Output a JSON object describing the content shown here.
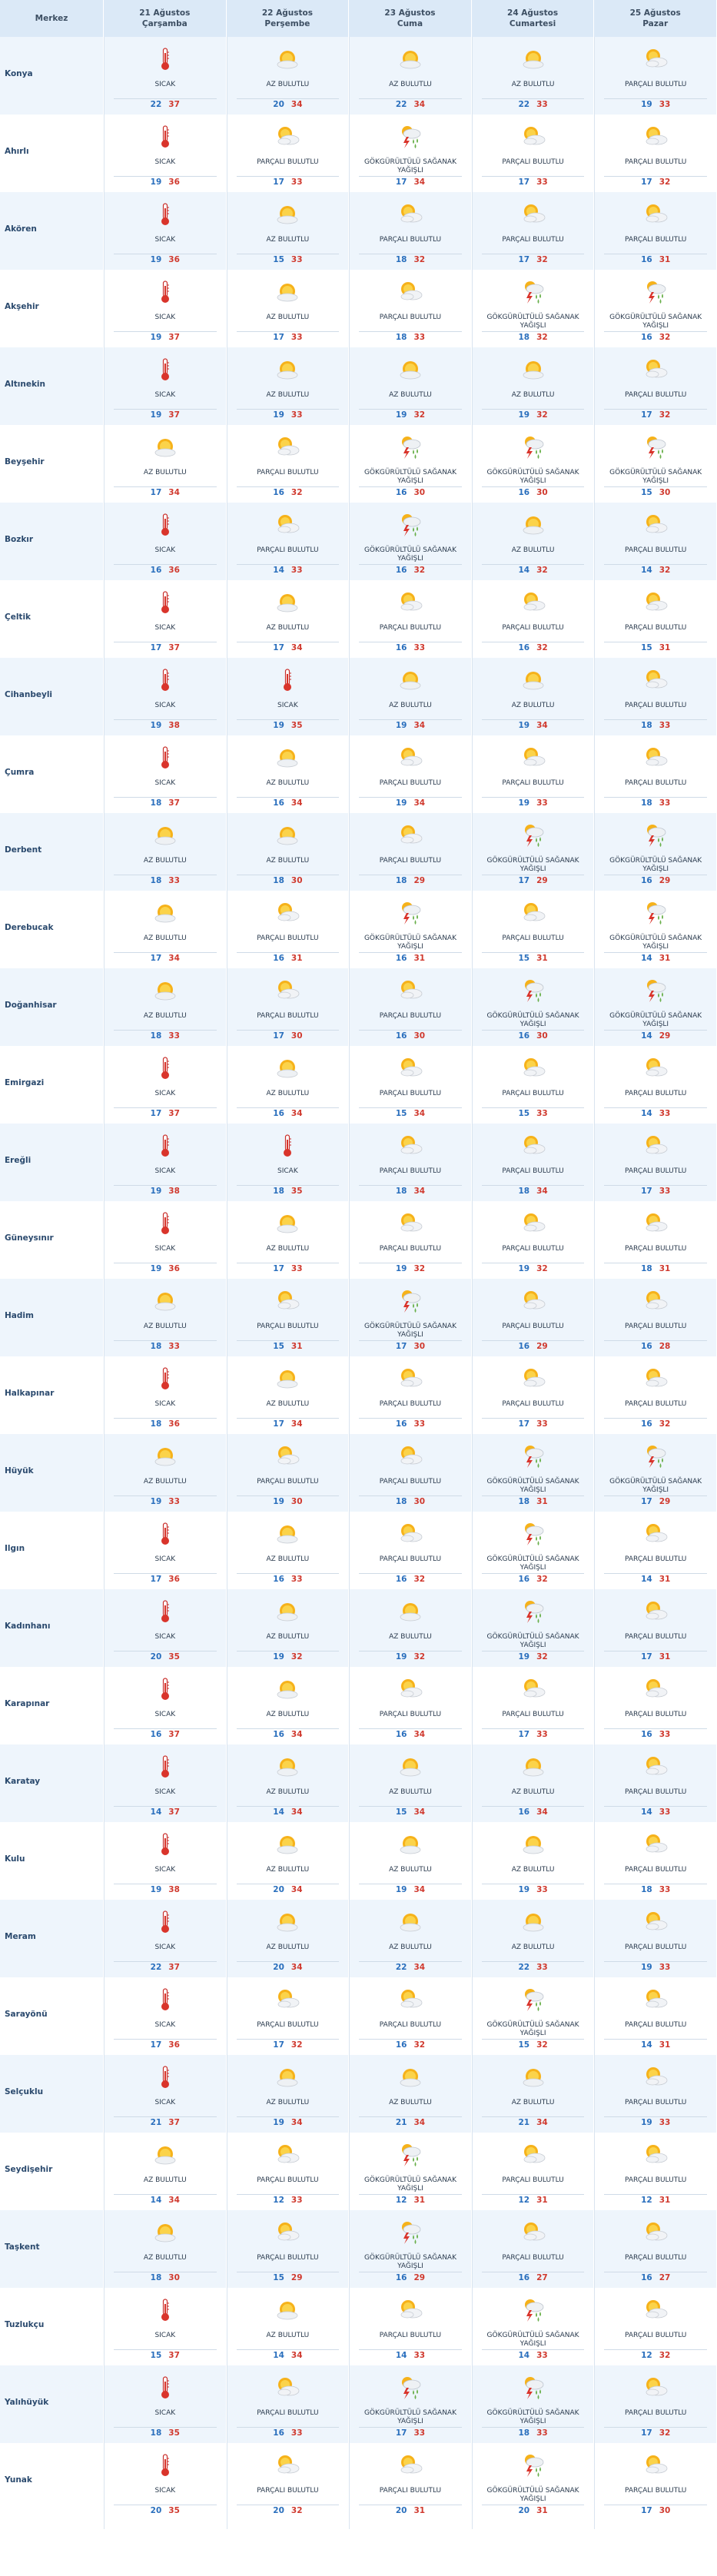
{
  "header": {
    "merkez": "Merkez",
    "days": [
      {
        "date": "21 Ağustos",
        "day": "Çarşamba"
      },
      {
        "date": "22 Ağustos",
        "day": "Perşembe"
      },
      {
        "date": "23 Ağustos",
        "day": "Cuma"
      },
      {
        "date": "24 Ağustos",
        "day": "Cumartesi"
      },
      {
        "date": "25 Ağustos",
        "day": "Pazar"
      }
    ]
  },
  "conditions": {
    "sicak": "SICAK",
    "az": "AZ BULUTLU",
    "parcali": "PARÇALI BULUTLU",
    "saganak": "GÖKGÜRÜLTÜLÜ SAĞANAK YAĞIŞLI"
  },
  "icons": {
    "sicak": "thermometer-icon",
    "az": "sun-cloud-icon",
    "parcali": "partly-cloudy-icon",
    "saganak": "thunderstorm-icon"
  },
  "rows": [
    {
      "name": "Konya",
      "days": [
        {
          "c": "sicak",
          "min": "22",
          "max": "37"
        },
        {
          "c": "az",
          "min": "20",
          "max": "34"
        },
        {
          "c": "az",
          "min": "22",
          "max": "34"
        },
        {
          "c": "az",
          "min": "22",
          "max": "33"
        },
        {
          "c": "parcali",
          "min": "19",
          "max": "33"
        }
      ]
    },
    {
      "name": "Ahırlı",
      "days": [
        {
          "c": "sicak",
          "min": "19",
          "max": "36"
        },
        {
          "c": "parcali",
          "min": "17",
          "max": "33"
        },
        {
          "c": "saganak",
          "min": "17",
          "max": "34"
        },
        {
          "c": "parcali",
          "min": "17",
          "max": "33"
        },
        {
          "c": "parcali",
          "min": "17",
          "max": "32"
        }
      ]
    },
    {
      "name": "Akören",
      "days": [
        {
          "c": "sicak",
          "min": "19",
          "max": "36"
        },
        {
          "c": "az",
          "min": "15",
          "max": "33"
        },
        {
          "c": "parcali",
          "min": "18",
          "max": "32"
        },
        {
          "c": "parcali",
          "min": "17",
          "max": "32"
        },
        {
          "c": "parcali",
          "min": "16",
          "max": "31"
        }
      ]
    },
    {
      "name": "Akşehir",
      "days": [
        {
          "c": "sicak",
          "min": "19",
          "max": "37"
        },
        {
          "c": "az",
          "min": "17",
          "max": "33"
        },
        {
          "c": "parcali",
          "min": "18",
          "max": "33"
        },
        {
          "c": "saganak",
          "min": "18",
          "max": "32"
        },
        {
          "c": "saganak",
          "min": "16",
          "max": "32"
        }
      ]
    },
    {
      "name": "Altınekin",
      "days": [
        {
          "c": "sicak",
          "min": "19",
          "max": "37"
        },
        {
          "c": "az",
          "min": "19",
          "max": "33"
        },
        {
          "c": "az",
          "min": "19",
          "max": "32"
        },
        {
          "c": "az",
          "min": "19",
          "max": "32"
        },
        {
          "c": "parcali",
          "min": "17",
          "max": "32"
        }
      ]
    },
    {
      "name": "Beyşehir",
      "days": [
        {
          "c": "az",
          "min": "17",
          "max": "34"
        },
        {
          "c": "parcali",
          "min": "16",
          "max": "32"
        },
        {
          "c": "saganak",
          "min": "16",
          "max": "30"
        },
        {
          "c": "saganak",
          "min": "16",
          "max": "30"
        },
        {
          "c": "saganak",
          "min": "15",
          "max": "30"
        }
      ]
    },
    {
      "name": "Bozkır",
      "days": [
        {
          "c": "sicak",
          "min": "16",
          "max": "36"
        },
        {
          "c": "parcali",
          "min": "14",
          "max": "33"
        },
        {
          "c": "saganak",
          "min": "16",
          "max": "32"
        },
        {
          "c": "az",
          "min": "14",
          "max": "32"
        },
        {
          "c": "parcali",
          "min": "14",
          "max": "32"
        }
      ]
    },
    {
      "name": "Çeltik",
      "days": [
        {
          "c": "sicak",
          "min": "17",
          "max": "37"
        },
        {
          "c": "az",
          "min": "17",
          "max": "34"
        },
        {
          "c": "parcali",
          "min": "16",
          "max": "33"
        },
        {
          "c": "parcali",
          "min": "16",
          "max": "32"
        },
        {
          "c": "parcali",
          "min": "15",
          "max": "31"
        }
      ]
    },
    {
      "name": "Cihanbeyli",
      "days": [
        {
          "c": "sicak",
          "min": "19",
          "max": "38"
        },
        {
          "c": "sicak",
          "min": "19",
          "max": "35"
        },
        {
          "c": "az",
          "min": "19",
          "max": "34"
        },
        {
          "c": "az",
          "min": "19",
          "max": "34"
        },
        {
          "c": "parcali",
          "min": "18",
          "max": "33"
        }
      ]
    },
    {
      "name": "Çumra",
      "days": [
        {
          "c": "sicak",
          "min": "18",
          "max": "37"
        },
        {
          "c": "az",
          "min": "16",
          "max": "34"
        },
        {
          "c": "parcali",
          "min": "19",
          "max": "34"
        },
        {
          "c": "parcali",
          "min": "19",
          "max": "33"
        },
        {
          "c": "parcali",
          "min": "18",
          "max": "33"
        }
      ]
    },
    {
      "name": "Derbent",
      "days": [
        {
          "c": "az",
          "min": "18",
          "max": "33"
        },
        {
          "c": "az",
          "min": "18",
          "max": "30"
        },
        {
          "c": "parcali",
          "min": "18",
          "max": "29"
        },
        {
          "c": "saganak",
          "min": "17",
          "max": "29"
        },
        {
          "c": "saganak",
          "min": "16",
          "max": "29"
        }
      ]
    },
    {
      "name": "Derebucak",
      "days": [
        {
          "c": "az",
          "min": "17",
          "max": "34"
        },
        {
          "c": "parcali",
          "min": "16",
          "max": "31"
        },
        {
          "c": "saganak",
          "min": "16",
          "max": "31"
        },
        {
          "c": "parcali",
          "min": "15",
          "max": "31"
        },
        {
          "c": "saganak",
          "min": "14",
          "max": "31"
        }
      ]
    },
    {
      "name": "Doğanhisar",
      "days": [
        {
          "c": "az",
          "min": "18",
          "max": "33"
        },
        {
          "c": "parcali",
          "min": "17",
          "max": "30"
        },
        {
          "c": "parcali",
          "min": "16",
          "max": "30"
        },
        {
          "c": "saganak",
          "min": "16",
          "max": "30"
        },
        {
          "c": "saganak",
          "min": "14",
          "max": "29"
        }
      ]
    },
    {
      "name": "Emirgazi",
      "days": [
        {
          "c": "sicak",
          "min": "17",
          "max": "37"
        },
        {
          "c": "az",
          "min": "16",
          "max": "34"
        },
        {
          "c": "parcali",
          "min": "15",
          "max": "34"
        },
        {
          "c": "parcali",
          "min": "15",
          "max": "33"
        },
        {
          "c": "parcali",
          "min": "14",
          "max": "33"
        }
      ]
    },
    {
      "name": "Ereğli",
      "days": [
        {
          "c": "sicak",
          "min": "19",
          "max": "38"
        },
        {
          "c": "sicak",
          "min": "18",
          "max": "35"
        },
        {
          "c": "parcali",
          "min": "18",
          "max": "34"
        },
        {
          "c": "parcali",
          "min": "18",
          "max": "34"
        },
        {
          "c": "parcali",
          "min": "17",
          "max": "33"
        }
      ]
    },
    {
      "name": "Güneysınır",
      "days": [
        {
          "c": "sicak",
          "min": "19",
          "max": "36"
        },
        {
          "c": "az",
          "min": "17",
          "max": "33"
        },
        {
          "c": "parcali",
          "min": "19",
          "max": "32"
        },
        {
          "c": "parcali",
          "min": "19",
          "max": "32"
        },
        {
          "c": "parcali",
          "min": "18",
          "max": "31"
        }
      ]
    },
    {
      "name": "Hadim",
      "days": [
        {
          "c": "az",
          "min": "18",
          "max": "33"
        },
        {
          "c": "parcali",
          "min": "15",
          "max": "31"
        },
        {
          "c": "saganak",
          "min": "17",
          "max": "30"
        },
        {
          "c": "parcali",
          "min": "16",
          "max": "29"
        },
        {
          "c": "parcali",
          "min": "16",
          "max": "28"
        }
      ]
    },
    {
      "name": "Halkapınar",
      "days": [
        {
          "c": "sicak",
          "min": "18",
          "max": "36"
        },
        {
          "c": "az",
          "min": "17",
          "max": "34"
        },
        {
          "c": "parcali",
          "min": "16",
          "max": "33"
        },
        {
          "c": "parcali",
          "min": "17",
          "max": "33"
        },
        {
          "c": "parcali",
          "min": "16",
          "max": "32"
        }
      ]
    },
    {
      "name": "Hüyük",
      "days": [
        {
          "c": "az",
          "min": "19",
          "max": "33"
        },
        {
          "c": "parcali",
          "min": "19",
          "max": "30"
        },
        {
          "c": "parcali",
          "min": "18",
          "max": "30"
        },
        {
          "c": "saganak",
          "min": "18",
          "max": "31"
        },
        {
          "c": "saganak",
          "min": "17",
          "max": "29"
        }
      ]
    },
    {
      "name": "Ilgın",
      "days": [
        {
          "c": "sicak",
          "min": "17",
          "max": "36"
        },
        {
          "c": "az",
          "min": "16",
          "max": "33"
        },
        {
          "c": "parcali",
          "min": "16",
          "max": "32"
        },
        {
          "c": "saganak",
          "min": "16",
          "max": "32"
        },
        {
          "c": "parcali",
          "min": "14",
          "max": "31"
        }
      ]
    },
    {
      "name": "Kadınhanı",
      "days": [
        {
          "c": "sicak",
          "min": "20",
          "max": "35"
        },
        {
          "c": "az",
          "min": "19",
          "max": "32"
        },
        {
          "c": "az",
          "min": "19",
          "max": "32"
        },
        {
          "c": "saganak",
          "min": "19",
          "max": "32"
        },
        {
          "c": "parcali",
          "min": "17",
          "max": "31"
        }
      ]
    },
    {
      "name": "Karapınar",
      "days": [
        {
          "c": "sicak",
          "min": "16",
          "max": "37"
        },
        {
          "c": "az",
          "min": "16",
          "max": "34"
        },
        {
          "c": "parcali",
          "min": "16",
          "max": "34"
        },
        {
          "c": "parcali",
          "min": "17",
          "max": "33"
        },
        {
          "c": "parcali",
          "min": "16",
          "max": "33"
        }
      ]
    },
    {
      "name": "Karatay",
      "days": [
        {
          "c": "sicak",
          "min": "14",
          "max": "37"
        },
        {
          "c": "az",
          "min": "14",
          "max": "34"
        },
        {
          "c": "az",
          "min": "15",
          "max": "34"
        },
        {
          "c": "az",
          "min": "16",
          "max": "34"
        },
        {
          "c": "parcali",
          "min": "14",
          "max": "33"
        }
      ]
    },
    {
      "name": "Kulu",
      "days": [
        {
          "c": "sicak",
          "min": "19",
          "max": "38"
        },
        {
          "c": "az",
          "min": "20",
          "max": "34"
        },
        {
          "c": "az",
          "min": "19",
          "max": "34"
        },
        {
          "c": "az",
          "min": "19",
          "max": "33"
        },
        {
          "c": "parcali",
          "min": "18",
          "max": "33"
        }
      ]
    },
    {
      "name": "Meram",
      "days": [
        {
          "c": "sicak",
          "min": "22",
          "max": "37"
        },
        {
          "c": "az",
          "min": "20",
          "max": "34"
        },
        {
          "c": "az",
          "min": "22",
          "max": "34"
        },
        {
          "c": "az",
          "min": "22",
          "max": "33"
        },
        {
          "c": "parcali",
          "min": "19",
          "max": "33"
        }
      ]
    },
    {
      "name": "Sarayönü",
      "days": [
        {
          "c": "sicak",
          "min": "17",
          "max": "36"
        },
        {
          "c": "parcali",
          "min": "17",
          "max": "32"
        },
        {
          "c": "parcali",
          "min": "16",
          "max": "32"
        },
        {
          "c": "saganak",
          "min": "15",
          "max": "32"
        },
        {
          "c": "parcali",
          "min": "14",
          "max": "31"
        }
      ]
    },
    {
      "name": "Selçuklu",
      "days": [
        {
          "c": "sicak",
          "min": "21",
          "max": "37"
        },
        {
          "c": "az",
          "min": "19",
          "max": "34"
        },
        {
          "c": "az",
          "min": "21",
          "max": "34"
        },
        {
          "c": "az",
          "min": "21",
          "max": "34"
        },
        {
          "c": "parcali",
          "min": "19",
          "max": "33"
        }
      ]
    },
    {
      "name": "Seydişehir",
      "days": [
        {
          "c": "az",
          "min": "14",
          "max": "34"
        },
        {
          "c": "parcali",
          "min": "12",
          "max": "33"
        },
        {
          "c": "saganak",
          "min": "12",
          "max": "31"
        },
        {
          "c": "parcali",
          "min": "12",
          "max": "31"
        },
        {
          "c": "parcali",
          "min": "12",
          "max": "31"
        }
      ]
    },
    {
      "name": "Taşkent",
      "days": [
        {
          "c": "az",
          "min": "18",
          "max": "30"
        },
        {
          "c": "parcali",
          "min": "15",
          "max": "29"
        },
        {
          "c": "saganak",
          "min": "16",
          "max": "29"
        },
        {
          "c": "parcali",
          "min": "16",
          "max": "27"
        },
        {
          "c": "parcali",
          "min": "16",
          "max": "27"
        }
      ]
    },
    {
      "name": "Tuzlukçu",
      "days": [
        {
          "c": "sicak",
          "min": "15",
          "max": "37"
        },
        {
          "c": "az",
          "min": "14",
          "max": "34"
        },
        {
          "c": "parcali",
          "min": "14",
          "max": "33"
        },
        {
          "c": "saganak",
          "min": "14",
          "max": "33"
        },
        {
          "c": "parcali",
          "min": "12",
          "max": "32"
        }
      ]
    },
    {
      "name": "Yalıhüyük",
      "days": [
        {
          "c": "sicak",
          "min": "18",
          "max": "35"
        },
        {
          "c": "parcali",
          "min": "16",
          "max": "33"
        },
        {
          "c": "saganak",
          "min": "17",
          "max": "33"
        },
        {
          "c": "saganak",
          "min": "18",
          "max": "33"
        },
        {
          "c": "parcali",
          "min": "17",
          "max": "32"
        }
      ]
    },
    {
      "name": "Yunak",
      "days": [
        {
          "c": "sicak",
          "min": "20",
          "max": "35"
        },
        {
          "c": "parcali",
          "min": "20",
          "max": "32"
        },
        {
          "c": "parcali",
          "min": "20",
          "max": "31"
        },
        {
          "c": "saganak",
          "min": "20",
          "max": "31"
        },
        {
          "c": "parcali",
          "min": "17",
          "max": "30"
        }
      ]
    }
  ]
}
